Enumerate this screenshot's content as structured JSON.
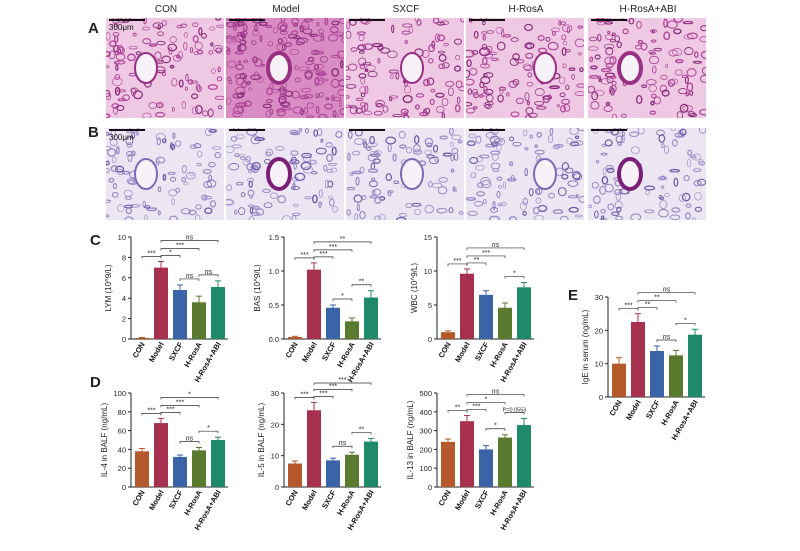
{
  "panel_letters": {
    "A": "A",
    "B": "B",
    "C": "C",
    "D": "D",
    "E": "E"
  },
  "histology": {
    "columns": [
      "CON",
      "Model",
      "SXCF",
      "H-RosA",
      "H-RosA+ABI"
    ],
    "scale_A": "300μm",
    "scale_B": "300μm"
  },
  "colors": {
    "CON": "#b5582c",
    "Model": "#a8304f",
    "SXCF": "#3a63a8",
    "H-RosA": "#5a7a2e",
    "H-RosA+ABI": "#1e8a6a",
    "he_stain": "#c86aa8",
    "pas_stain": "#9a86c4"
  },
  "chart_data": [
    {
      "id": "lym",
      "type": "bar",
      "ylabel": "LYM (10^9/L)",
      "ylim": [
        0,
        10
      ],
      "yticks": [
        "0",
        "2",
        "4",
        "6",
        "8",
        "10"
      ],
      "categories": [
        "CON",
        "Model",
        "SXCF",
        "H-RosA",
        "H-RosA+ABI"
      ],
      "values": [
        0.1,
        7.0,
        4.8,
        3.6,
        5.1
      ],
      "errors": [
        0.05,
        0.6,
        0.5,
        0.6,
        0.6
      ],
      "sig": [
        {
          "a": 1,
          "b": 2,
          "t": "*"
        },
        {
          "a": 2,
          "b": 3,
          "t": "ns"
        },
        {
          "a": 3,
          "b": 4,
          "t": "ns"
        },
        {
          "a": 0,
          "b": 1,
          "t": "***"
        },
        {
          "a": 1,
          "b": 3,
          "t": "***"
        },
        {
          "a": 1,
          "b": 4,
          "t": "ns"
        }
      ]
    },
    {
      "id": "bas",
      "type": "bar",
      "ylabel": "BAS (10^9/L)",
      "ylim": [
        0,
        1.5
      ],
      "yticks": [
        "0.0",
        "0.5",
        "1.0",
        "1.5"
      ],
      "categories": [
        "CON",
        "Model",
        "SXCF",
        "H-RosA",
        "H-RosA+ABI"
      ],
      "values": [
        0.03,
        1.02,
        0.46,
        0.26,
        0.61
      ],
      "errors": [
        0.01,
        0.1,
        0.04,
        0.05,
        0.1
      ],
      "sig": [
        {
          "a": 3,
          "b": 4,
          "t": "**"
        },
        {
          "a": 2,
          "b": 3,
          "t": "*"
        },
        {
          "a": 0,
          "b": 1,
          "t": "***"
        },
        {
          "a": 1,
          "b": 2,
          "t": "***"
        },
        {
          "a": 1,
          "b": 3,
          "t": "***"
        },
        {
          "a": 1,
          "b": 4,
          "t": "**"
        }
      ]
    },
    {
      "id": "wbc",
      "type": "bar",
      "ylabel": "WBC (10^9/L)",
      "ylim": [
        0,
        15
      ],
      "yticks": [
        "0",
        "5",
        "10",
        "15"
      ],
      "categories": [
        "CON",
        "Model",
        "SXCF",
        "H-RosA",
        "H-RosA+ABI"
      ],
      "values": [
        1.0,
        9.6,
        6.5,
        4.6,
        7.6
      ],
      "errors": [
        0.2,
        0.7,
        0.6,
        0.7,
        0.7
      ],
      "sig": [
        {
          "a": 3,
          "b": 4,
          "t": "*"
        },
        {
          "a": 0,
          "b": 1,
          "t": "***"
        },
        {
          "a": 1,
          "b": 2,
          "t": "**"
        },
        {
          "a": 1,
          "b": 3,
          "t": "***"
        },
        {
          "a": 1,
          "b": 4,
          "t": "ns"
        }
      ]
    },
    {
      "id": "il4",
      "type": "bar",
      "ylabel": "IL-4 in BALF (ng/mL)",
      "ylim": [
        0,
        100
      ],
      "yticks": [
        "0",
        "20",
        "40",
        "60",
        "80",
        "100"
      ],
      "categories": [
        "CON",
        "Model",
        "SXCF",
        "H-RosA",
        "H-RosA+ABI"
      ],
      "values": [
        38,
        68,
        32,
        39,
        50
      ],
      "errors": [
        3,
        5,
        2,
        3,
        3
      ],
      "sig": [
        {
          "a": 2,
          "b": 3,
          "t": "ns"
        },
        {
          "a": 3,
          "b": 4,
          "t": "*"
        },
        {
          "a": 0,
          "b": 1,
          "t": "***"
        },
        {
          "a": 1,
          "b": 2,
          "t": "***"
        },
        {
          "a": 1,
          "b": 3,
          "t": "***"
        },
        {
          "a": 1,
          "b": 4,
          "t": "*"
        }
      ]
    },
    {
      "id": "il5",
      "type": "bar",
      "ylabel": "IL-5 in BALF (ng/mL)",
      "ylim": [
        0,
        30
      ],
      "yticks": [
        "0",
        "10",
        "20",
        "30"
      ],
      "categories": [
        "CON",
        "Model",
        "SXCF",
        "H-RosA",
        "H-RosA+ABI"
      ],
      "values": [
        7.5,
        24.5,
        8.5,
        10.3,
        14.5
      ],
      "errors": [
        0.8,
        2.5,
        0.7,
        0.8,
        1.0
      ],
      "sig": [
        {
          "a": 2,
          "b": 3,
          "t": "ns"
        },
        {
          "a": 3,
          "b": 4,
          "t": "**"
        },
        {
          "a": 0,
          "b": 1,
          "t": "***"
        },
        {
          "a": 1,
          "b": 2,
          "t": "***"
        },
        {
          "a": 1,
          "b": 3,
          "t": "***"
        },
        {
          "a": 1,
          "b": 4,
          "t": "***"
        }
      ]
    },
    {
      "id": "il13",
      "type": "bar",
      "ylabel": "IL-13 in BALF (ng/mL)",
      "ylim": [
        0,
        500
      ],
      "yticks": [
        "0",
        "100",
        "200",
        "300",
        "400",
        "500"
      ],
      "categories": [
        "CON",
        "Model",
        "SXCF",
        "H-RosA",
        "H-RosA+ABI"
      ],
      "values": [
        240,
        350,
        200,
        263,
        330
      ],
      "errors": [
        15,
        30,
        20,
        15,
        35
      ],
      "sig": [
        {
          "a": 2,
          "b": 3,
          "t": "*"
        },
        {
          "a": 3,
          "b": 4,
          "t": "P=0.0553"
        },
        {
          "a": 0,
          "b": 1,
          "t": "**"
        },
        {
          "a": 1,
          "b": 2,
          "t": "***"
        },
        {
          "a": 1,
          "b": 3,
          "t": "*"
        },
        {
          "a": 1,
          "b": 4,
          "t": "ns"
        }
      ]
    },
    {
      "id": "ige",
      "type": "bar",
      "ylabel": "IgE in serum (ng/mL)",
      "ylim": [
        0,
        30
      ],
      "yticks": [
        "0",
        "10",
        "20",
        "30"
      ],
      "categories": [
        "CON",
        "Model",
        "SXCF",
        "H-RosA",
        "H-RosA+ABI"
      ],
      "values": [
        10,
        22.5,
        13.8,
        12.5,
        18.7
      ],
      "errors": [
        1.8,
        2.5,
        1.5,
        1.5,
        1.6
      ],
      "sig": [
        {
          "a": 2,
          "b": 3,
          "t": "ns"
        },
        {
          "a": 3,
          "b": 4,
          "t": "*"
        },
        {
          "a": 0,
          "b": 1,
          "t": "***"
        },
        {
          "a": 1,
          "b": 2,
          "t": "**"
        },
        {
          "a": 1,
          "b": 3,
          "t": "**"
        },
        {
          "a": 1,
          "b": 4,
          "t": "ns"
        }
      ]
    }
  ]
}
